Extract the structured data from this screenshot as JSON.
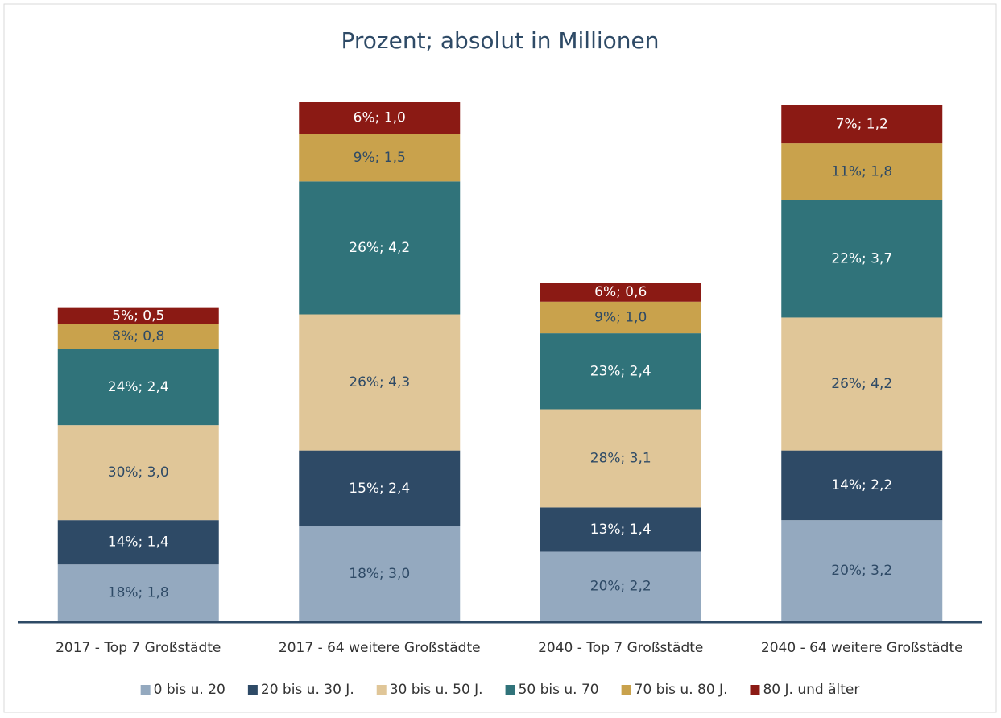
{
  "chart_data": {
    "type": "stacked_bar",
    "title": "Prozent; absolut in Millionen",
    "categories": [
      "2017 - Top 7 Großstädte",
      "2017 - 64 weitere Großstädte",
      "2040 - Top 7 Großstädte",
      "2040 - 64 weitere Großstädte"
    ],
    "series": [
      {
        "name": "0 bis u. 20",
        "color": "#94a9bf",
        "values": [
          1.8,
          3.0,
          2.2,
          3.2
        ],
        "value_labels": [
          "18%; 1,8",
          "18%; 3,0",
          "20%; 2,2",
          "20%; 3,2"
        ]
      },
      {
        "name": "20 bis u. 30 J.",
        "color": "#2e4a66",
        "values": [
          1.4,
          2.4,
          1.4,
          2.2
        ],
        "value_labels": [
          "14%; 1,4",
          "15%; 2,4",
          "13%; 1,4",
          "14%; 2,2"
        ]
      },
      {
        "name": "30 bis u. 50 J.",
        "color": "#e0c698",
        "values": [
          3.0,
          4.3,
          3.1,
          4.2
        ],
        "value_labels": [
          "30%; 3,0",
          "26%; 4,3",
          "28%; 3,1",
          "26%; 4,2"
        ]
      },
      {
        "name": "50 bis u. 70",
        "color": "#30737a",
        "values": [
          2.4,
          4.2,
          2.4,
          3.7
        ],
        "value_labels": [
          "24%; 2,4",
          "26%; 4,2",
          "23%; 2,4",
          "22%; 3,7"
        ]
      },
      {
        "name": "70 bis u. 80 J.",
        "color": "#c9a24c",
        "values": [
          0.8,
          1.5,
          1.0,
          1.8
        ],
        "value_labels": [
          "8%; 0,8",
          "9%; 1,5",
          "9%; 1,0",
          "11%; 1,8"
        ]
      },
      {
        "name": "80 J. und älter",
        "color": "#8b1a14",
        "values": [
          0.5,
          1.0,
          0.6,
          1.2
        ],
        "value_labels": [
          "5%; 0,5",
          "6%; 1,0",
          "6%; 0,6",
          "7%; 1,2"
        ]
      }
    ],
    "legend": "bottom"
  }
}
